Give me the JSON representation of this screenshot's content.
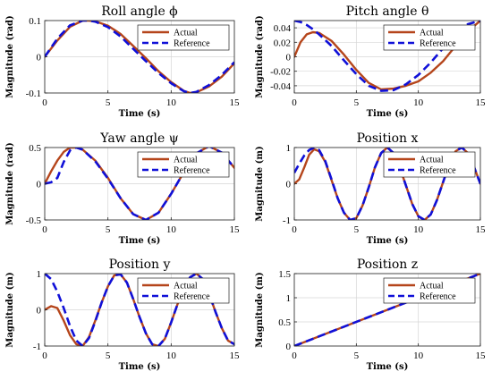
{
  "chart_data": [
    {
      "type": "line",
      "title": "Roll angle ϕ",
      "xlabel": "Time (s)",
      "ylabel": "Magnitude (rad)",
      "xlim": [
        0,
        15
      ],
      "ylim": [
        -0.1,
        0.1
      ],
      "xticks": [
        0,
        5,
        10,
        15
      ],
      "yticks": [
        -0.1,
        0,
        0.1
      ],
      "xtick_labels": [
        "0",
        "5",
        "10",
        "15"
      ],
      "ytick_labels": [
        "-0.1",
        "0",
        "0.1"
      ],
      "grid": true,
      "legend": "top-right",
      "series": [
        {
          "name": "Actual",
          "color": "#b5451b",
          "style": "solid",
          "x": [
            0,
            1,
            2,
            3,
            3.5,
            4,
            5,
            6,
            7,
            8,
            9,
            10,
            11,
            11.5,
            12,
            13,
            14,
            15
          ],
          "y": [
            0,
            0.045,
            0.083,
            0.1,
            0.1,
            0.098,
            0.086,
            0.063,
            0.03,
            -0.004,
            -0.04,
            -0.07,
            -0.094,
            -0.1,
            -0.098,
            -0.082,
            -0.055,
            -0.018
          ]
        },
        {
          "name": "Reference",
          "color": "#1010d8",
          "style": "dashed",
          "x": [
            0,
            1,
            2,
            3,
            3.5,
            4,
            5,
            6,
            7,
            8,
            9,
            10,
            11,
            11.5,
            12,
            13,
            14,
            15
          ],
          "y": [
            0,
            0.05,
            0.087,
            0.1,
            0.1,
            0.097,
            0.082,
            0.056,
            0.022,
            -0.012,
            -0.045,
            -0.073,
            -0.095,
            -0.1,
            -0.097,
            -0.078,
            -0.05,
            -0.015
          ]
        }
      ]
    },
    {
      "type": "line",
      "title": "Pitch angle θ",
      "xlabel": "Time (s)",
      "ylabel": "Magnitude (rad)",
      "xlim": [
        0,
        15
      ],
      "ylim": [
        -0.05,
        0.05
      ],
      "xticks": [
        0,
        5,
        10,
        15
      ],
      "yticks": [
        -0.04,
        -0.02,
        0,
        0.02,
        0.04
      ],
      "xtick_labels": [
        "0",
        "5",
        "10",
        "15"
      ],
      "ytick_labels": [
        "-0.04",
        "-0.02",
        "0",
        "0.02",
        "0.04"
      ],
      "grid": true,
      "legend": "top-right",
      "series": [
        {
          "name": "Actual",
          "color": "#b5451b",
          "style": "solid",
          "x": [
            0,
            0.5,
            1,
            1.5,
            2,
            3,
            4,
            5,
            6,
            7,
            8,
            9,
            10,
            11,
            12,
            13,
            14,
            15
          ],
          "y": [
            0,
            0.02,
            0.031,
            0.034,
            0.033,
            0.022,
            0.003,
            -0.018,
            -0.036,
            -0.045,
            -0.044,
            -0.04,
            -0.034,
            -0.022,
            -0.006,
            0.015,
            0.035,
            0.05
          ]
        },
        {
          "name": "Reference",
          "color": "#1010d8",
          "style": "dashed",
          "x": [
            0,
            0.5,
            1,
            1.5,
            2,
            3,
            4,
            5,
            6,
            7,
            8,
            9,
            10,
            11,
            12,
            13,
            14,
            15
          ],
          "y": [
            0.05,
            0.048,
            0.044,
            0.038,
            0.031,
            0.015,
            -0.005,
            -0.024,
            -0.04,
            -0.047,
            -0.046,
            -0.038,
            -0.025,
            -0.008,
            0.012,
            0.03,
            0.045,
            0.05
          ]
        }
      ]
    },
    {
      "type": "line",
      "title": "Yaw angle ψ",
      "xlabel": "Time (s)",
      "ylabel": "Magnitude (rad)",
      "xlim": [
        0,
        15
      ],
      "ylim": [
        -0.5,
        0.5
      ],
      "xticks": [
        0,
        5,
        10,
        15
      ],
      "yticks": [
        -0.5,
        0,
        0.5
      ],
      "xtick_labels": [
        "0",
        "5",
        "10",
        "15"
      ],
      "ytick_labels": [
        "-0.5",
        "0",
        "0.5"
      ],
      "grid": true,
      "legend": "top-right",
      "series": [
        {
          "name": "Actual",
          "color": "#b5451b",
          "style": "solid",
          "x": [
            0,
            0.5,
            1,
            1.5,
            2,
            2.5,
            3,
            4,
            5,
            6,
            7,
            8,
            9,
            10,
            11,
            12,
            13,
            14,
            15
          ],
          "y": [
            0,
            0.17,
            0.32,
            0.44,
            0.5,
            0.5,
            0.47,
            0.32,
            0.08,
            -0.2,
            -0.42,
            -0.5,
            -0.4,
            -0.14,
            0.16,
            0.42,
            0.52,
            0.43,
            0.22
          ]
        },
        {
          "name": "Reference",
          "color": "#1010d8",
          "style": "dashed",
          "x": [
            0,
            0.5,
            1,
            1.5,
            2,
            2.5,
            3,
            4,
            5,
            6,
            7,
            8,
            9,
            10,
            11,
            12,
            13,
            14,
            15
          ],
          "y": [
            0,
            0.02,
            0.08,
            0.3,
            0.46,
            0.5,
            0.47,
            0.31,
            0.07,
            -0.2,
            -0.42,
            -0.5,
            -0.4,
            -0.14,
            0.16,
            0.42,
            0.52,
            0.43,
            0.22
          ]
        }
      ]
    },
    {
      "type": "line",
      "title": "Position x",
      "xlabel": "Time (s)",
      "ylabel": "Magnitude (m)",
      "xlim": [
        0,
        15
      ],
      "ylim": [
        -1,
        1
      ],
      "xticks": [
        0,
        5,
        10,
        15
      ],
      "yticks": [
        -1,
        0,
        1
      ],
      "xtick_labels": [
        "0",
        "5",
        "10",
        "15"
      ],
      "ytick_labels": [
        "-1",
        "0",
        "1"
      ],
      "grid": true,
      "legend": "top-right",
      "series": [
        {
          "name": "Actual",
          "color": "#b5451b",
          "style": "solid",
          "x": [
            0,
            0.4,
            0.8,
            1.2,
            1.6,
            2,
            2.5,
            3,
            3.5,
            4,
            4.5,
            5,
            5.5,
            6,
            6.5,
            7,
            7.5,
            8,
            8.5,
            9,
            9.5,
            10,
            10.5,
            11,
            11.5,
            12,
            12.5,
            13,
            13.5,
            14,
            14.5,
            15
          ],
          "y": [
            0,
            0.12,
            0.45,
            0.8,
            0.95,
            0.9,
            0.6,
            0.1,
            -0.4,
            -0.8,
            -1,
            -0.95,
            -0.6,
            -0.1,
            0.45,
            0.85,
            1,
            0.85,
            0.45,
            -0.05,
            -0.55,
            -0.9,
            -1,
            -0.85,
            -0.45,
            0.05,
            0.55,
            0.9,
            1,
            0.85,
            0.45,
            0
          ]
        },
        {
          "name": "Reference",
          "color": "#1010d8",
          "style": "dashed",
          "x": [
            0,
            0.4,
            0.8,
            1.2,
            1.6,
            2,
            2.5,
            3,
            3.5,
            4,
            4.5,
            5,
            5.5,
            6,
            6.5,
            7,
            7.5,
            8,
            8.5,
            9,
            9.5,
            10,
            10.5,
            11,
            11.5,
            12,
            12.5,
            13,
            13.5,
            14,
            14.5,
            15
          ],
          "y": [
            0.3,
            0.55,
            0.78,
            0.93,
            1,
            0.93,
            0.62,
            0.12,
            -0.4,
            -0.8,
            -1,
            -0.95,
            -0.6,
            -0.1,
            0.45,
            0.85,
            1,
            0.85,
            0.45,
            -0.05,
            -0.55,
            -0.9,
            -1,
            -0.85,
            -0.45,
            0.05,
            0.55,
            0.9,
            1,
            0.85,
            0.45,
            0
          ]
        }
      ]
    },
    {
      "type": "line",
      "title": "Position y",
      "xlabel": "Time (s)",
      "ylabel": "Magnitude (m)",
      "xlim": [
        0,
        15
      ],
      "ylim": [
        -1,
        1
      ],
      "xticks": [
        0,
        5,
        10,
        15
      ],
      "yticks": [
        -1,
        0,
        1
      ],
      "xtick_labels": [
        "0",
        "5",
        "10",
        "15"
      ],
      "ytick_labels": [
        "-1",
        "0",
        "1"
      ],
      "grid": true,
      "legend": "top-right",
      "series": [
        {
          "name": "Actual",
          "color": "#b5451b",
          "style": "solid",
          "x": [
            0,
            0.5,
            1,
            1.5,
            2,
            2.5,
            3,
            3.5,
            4,
            4.5,
            5,
            5.5,
            6,
            6.5,
            7,
            7.5,
            8,
            8.5,
            9,
            9.5,
            10,
            10.5,
            11,
            11.5,
            12,
            12.5,
            13,
            13.5,
            14,
            14.5,
            15
          ],
          "y": [
            0,
            0.1,
            0.05,
            -0.3,
            -0.7,
            -0.95,
            -1,
            -0.75,
            -0.3,
            0.2,
            0.65,
            0.95,
            0.98,
            0.75,
            0.3,
            -0.2,
            -0.65,
            -0.95,
            -1,
            -0.8,
            -0.35,
            0.15,
            0.6,
            0.9,
            1,
            0.85,
            0.45,
            -0.05,
            -0.5,
            -0.85,
            -0.95
          ]
        },
        {
          "name": "Reference",
          "color": "#1010d8",
          "style": "dashed",
          "x": [
            0,
            0.5,
            1,
            1.5,
            2,
            2.5,
            3,
            3.5,
            4,
            4.5,
            5,
            5.5,
            6,
            6.5,
            7,
            7.5,
            8,
            8.5,
            9,
            9.5,
            10,
            10.5,
            11,
            11.5,
            12,
            12.5,
            13,
            13.5,
            14,
            14.5,
            15
          ],
          "y": [
            1,
            0.85,
            0.5,
            0.05,
            -0.45,
            -0.85,
            -1,
            -0.78,
            -0.32,
            0.2,
            0.65,
            0.95,
            0.98,
            0.75,
            0.3,
            -0.2,
            -0.65,
            -0.95,
            -1,
            -0.8,
            -0.35,
            0.15,
            0.6,
            0.9,
            1,
            0.85,
            0.45,
            -0.05,
            -0.5,
            -0.85,
            -0.95
          ]
        }
      ]
    },
    {
      "type": "line",
      "title": "Position z",
      "xlabel": "Time (s)",
      "ylabel": "Magnitude (m)",
      "xlim": [
        0,
        15
      ],
      "ylim": [
        0,
        1.5
      ],
      "xticks": [
        0,
        5,
        10,
        15
      ],
      "yticks": [
        0,
        0.5,
        1,
        1.5
      ],
      "xtick_labels": [
        "0",
        "5",
        "10",
        "15"
      ],
      "ytick_labels": [
        "0",
        "0.5",
        "1",
        "1.5"
      ],
      "grid": true,
      "legend": "top-right",
      "series": [
        {
          "name": "Actual",
          "color": "#b5451b",
          "style": "solid",
          "x": [
            0,
            15
          ],
          "y": [
            0,
            1.5
          ]
        },
        {
          "name": "Reference",
          "color": "#1010d8",
          "style": "dashed",
          "x": [
            0,
            15
          ],
          "y": [
            0,
            1.5
          ]
        }
      ]
    }
  ]
}
